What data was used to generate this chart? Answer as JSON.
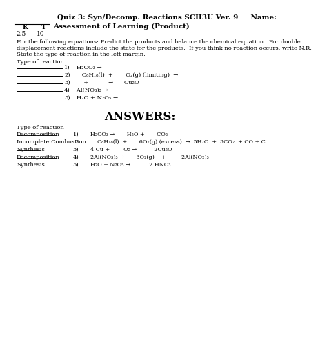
{
  "bg_color": "#ffffff",
  "title": "Quiz 3: Syn/Decomp. Reactions SCH3U Ver. 9     Name:",
  "subtitle": "Assessment of Learning (Product)",
  "k_score": "2.5",
  "t_score": "10",
  "instructions_line1": "For the following equations: Predict the products and balance the chemical equation.  For double",
  "instructions_line2": "displacement reactions include the state for the products.  If you think no reaction occurs, write N.R.",
  "instructions_line3": "State the type of reaction in the left margin.",
  "type_label": "Type of reaction",
  "answers_title": "ANSWERS:",
  "font_size_title": 7.5,
  "font_size_body": 6.5,
  "font_size_small": 6.0
}
